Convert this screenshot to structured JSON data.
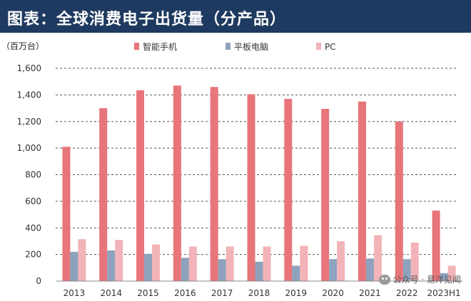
{
  "header": {
    "title": "图表：全球消费电子出货量（分产品）"
  },
  "watermark": {
    "text": "公众号 · 易洋见闻",
    "icon": "wechat-icon"
  },
  "chart_data": {
    "type": "bar",
    "title": "图表：全球消费电子出货量（分产品）",
    "unit_label": "（百万台）",
    "xlabel": "",
    "ylabel": "",
    "ylim": [
      0,
      1600
    ],
    "yticks": [
      0,
      200,
      400,
      600,
      800,
      1000,
      1200,
      1400,
      1600
    ],
    "ytick_labels": [
      "0",
      "200",
      "400",
      "600",
      "800",
      "1,000",
      "1,200",
      "1,400",
      "1,600"
    ],
    "grid": "horizontal-dashed",
    "legend_position": "top",
    "categories": [
      "2013",
      "2014",
      "2015",
      "2016",
      "2017",
      "2018",
      "2019",
      "2020",
      "2021",
      "2022",
      "2023H1"
    ],
    "series": [
      {
        "name": "智能手机",
        "color": "#e8757a",
        "values": [
          1010,
          1300,
          1435,
          1470,
          1460,
          1405,
          1370,
          1295,
          1350,
          1200,
          530
        ]
      },
      {
        "name": "平板电脑",
        "color": "#8ea2bd",
        "values": [
          220,
          230,
          205,
          175,
          165,
          145,
          115,
          165,
          170,
          165,
          60
        ]
      },
      {
        "name": "PC",
        "color": "#f2b4b8",
        "values": [
          315,
          310,
          275,
          260,
          260,
          260,
          265,
          300,
          345,
          290,
          115
        ]
      }
    ]
  }
}
